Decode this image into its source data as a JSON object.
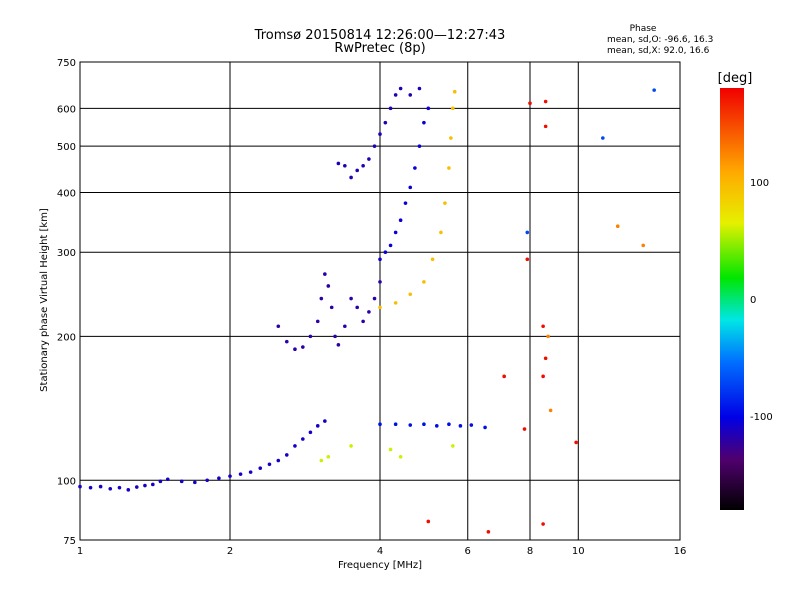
{
  "chart_data": {
    "type": "scatter",
    "title": "Tromsø 20150814 12:26:00—12:27:43",
    "subtitle": "RwPretec (8p)",
    "xlabel": "Frequency [MHz]",
    "ylabel": "Stationary phase Virtual Height [km]",
    "x_scale": "log",
    "y_scale": "log",
    "xlim": [
      1,
      16
    ],
    "ylim": [
      75,
      750
    ],
    "x_ticks": [
      1,
      2,
      4,
      6,
      8,
      10,
      16
    ],
    "y_ticks": [
      75,
      100,
      200,
      300,
      400,
      500,
      600,
      750
    ],
    "grid": true,
    "phase_box": {
      "title": "Phase",
      "line_o": "mean, sd,O: -96.6, 16.3",
      "line_x": "mean, sd,X:  92.0, 16.6"
    },
    "colorbar": {
      "label": "[deg]",
      "range": [
        -180,
        180
      ],
      "ticks": [
        100,
        0,
        -100
      ],
      "colormap": "rainbow (black-purple-blue-cyan-green-yellow-orange-red)"
    },
    "series": [
      {
        "phase": -110,
        "points": [
          [
            1.0,
            97
          ],
          [
            1.05,
            96.5
          ],
          [
            1.1,
            97
          ],
          [
            1.15,
            96
          ],
          [
            1.2,
            96.5
          ],
          [
            1.25,
            95.5
          ],
          [
            1.3,
            96.8
          ],
          [
            1.35,
            97.5
          ],
          [
            1.4,
            98
          ],
          [
            1.45,
            99.5
          ],
          [
            1.5,
            100.5
          ],
          [
            1.6,
            99.5
          ],
          [
            1.7,
            99
          ],
          [
            1.8,
            100
          ],
          [
            1.9,
            101
          ],
          [
            2.0,
            102
          ],
          [
            2.1,
            103
          ],
          [
            2.2,
            104
          ],
          [
            2.3,
            106
          ],
          [
            2.4,
            108
          ],
          [
            2.5,
            110
          ],
          [
            2.6,
            113
          ],
          [
            2.7,
            118
          ],
          [
            2.8,
            122
          ],
          [
            2.9,
            126
          ],
          [
            3.0,
            130
          ],
          [
            3.1,
            133
          ]
        ]
      },
      {
        "phase": -120,
        "points": [
          [
            2.5,
            210
          ],
          [
            2.6,
            195
          ],
          [
            2.7,
            188
          ],
          [
            2.8,
            190
          ],
          [
            2.9,
            200
          ],
          [
            3.0,
            215
          ],
          [
            3.05,
            240
          ],
          [
            3.1,
            270
          ],
          [
            3.15,
            255
          ],
          [
            3.2,
            230
          ],
          [
            3.25,
            200
          ],
          [
            3.3,
            192
          ],
          [
            3.4,
            210
          ],
          [
            3.5,
            240
          ],
          [
            3.6,
            230
          ],
          [
            3.7,
            215
          ],
          [
            3.8,
            225
          ],
          [
            3.9,
            240
          ],
          [
            4.0,
            260
          ]
        ]
      },
      {
        "phase": -115,
        "points": [
          [
            3.3,
            460
          ],
          [
            3.4,
            455
          ],
          [
            3.5,
            430
          ],
          [
            3.6,
            445
          ],
          [
            3.7,
            455
          ],
          [
            3.8,
            470
          ],
          [
            3.9,
            500
          ],
          [
            4.0,
            530
          ],
          [
            4.1,
            560
          ],
          [
            4.2,
            600
          ],
          [
            4.3,
            640
          ],
          [
            4.4,
            660
          ],
          [
            4.6,
            640
          ],
          [
            4.8,
            660
          ]
        ]
      },
      {
        "phase": -105,
        "points": [
          [
            4.0,
            290
          ],
          [
            4.1,
            300
          ],
          [
            4.2,
            310
          ],
          [
            4.3,
            330
          ],
          [
            4.4,
            350
          ],
          [
            4.5,
            380
          ],
          [
            4.6,
            410
          ],
          [
            4.7,
            450
          ],
          [
            4.8,
            500
          ],
          [
            4.9,
            560
          ],
          [
            5.0,
            600
          ]
        ]
      },
      {
        "phase": 95,
        "points": [
          [
            4.0,
            230
          ],
          [
            4.3,
            235
          ],
          [
            4.6,
            245
          ],
          [
            4.9,
            260
          ],
          [
            5.1,
            290
          ],
          [
            5.3,
            330
          ],
          [
            5.4,
            380
          ],
          [
            5.5,
            450
          ],
          [
            5.55,
            520
          ],
          [
            5.6,
            600
          ],
          [
            5.65,
            650
          ]
        ]
      },
      {
        "phase": -95,
        "points": [
          [
            4.0,
            131
          ],
          [
            4.3,
            131
          ],
          [
            4.6,
            130.5
          ],
          [
            4.9,
            131
          ],
          [
            5.2,
            130
          ],
          [
            5.5,
            131
          ],
          [
            5.8,
            130
          ],
          [
            6.1,
            130.5
          ],
          [
            6.5,
            129
          ]
        ]
      },
      {
        "phase": 60,
        "points": [
          [
            3.05,
            110
          ],
          [
            3.15,
            112
          ],
          [
            3.5,
            118
          ],
          [
            4.2,
            116
          ],
          [
            4.4,
            112
          ],
          [
            5.6,
            118
          ]
        ]
      },
      {
        "phase": 175,
        "points": [
          [
            8.0,
            615
          ],
          [
            8.6,
            620
          ],
          [
            8.6,
            550
          ],
          [
            7.9,
            290
          ],
          [
            8.5,
            210
          ],
          [
            8.6,
            180
          ],
          [
            7.1,
            165
          ],
          [
            8.5,
            165
          ],
          [
            9.9,
            120
          ],
          [
            7.8,
            128
          ],
          [
            8.5,
            81
          ],
          [
            5.0,
            82
          ],
          [
            6.6,
            78
          ]
        ]
      },
      {
        "phase": 125,
        "points": [
          [
            12.0,
            340
          ],
          [
            13.5,
            310
          ],
          [
            8.7,
            200
          ],
          [
            8.8,
            140
          ]
        ]
      },
      {
        "phase": -70,
        "points": [
          [
            11.2,
            520
          ],
          [
            14.2,
            655
          ],
          [
            7.9,
            330
          ]
        ]
      }
    ]
  }
}
